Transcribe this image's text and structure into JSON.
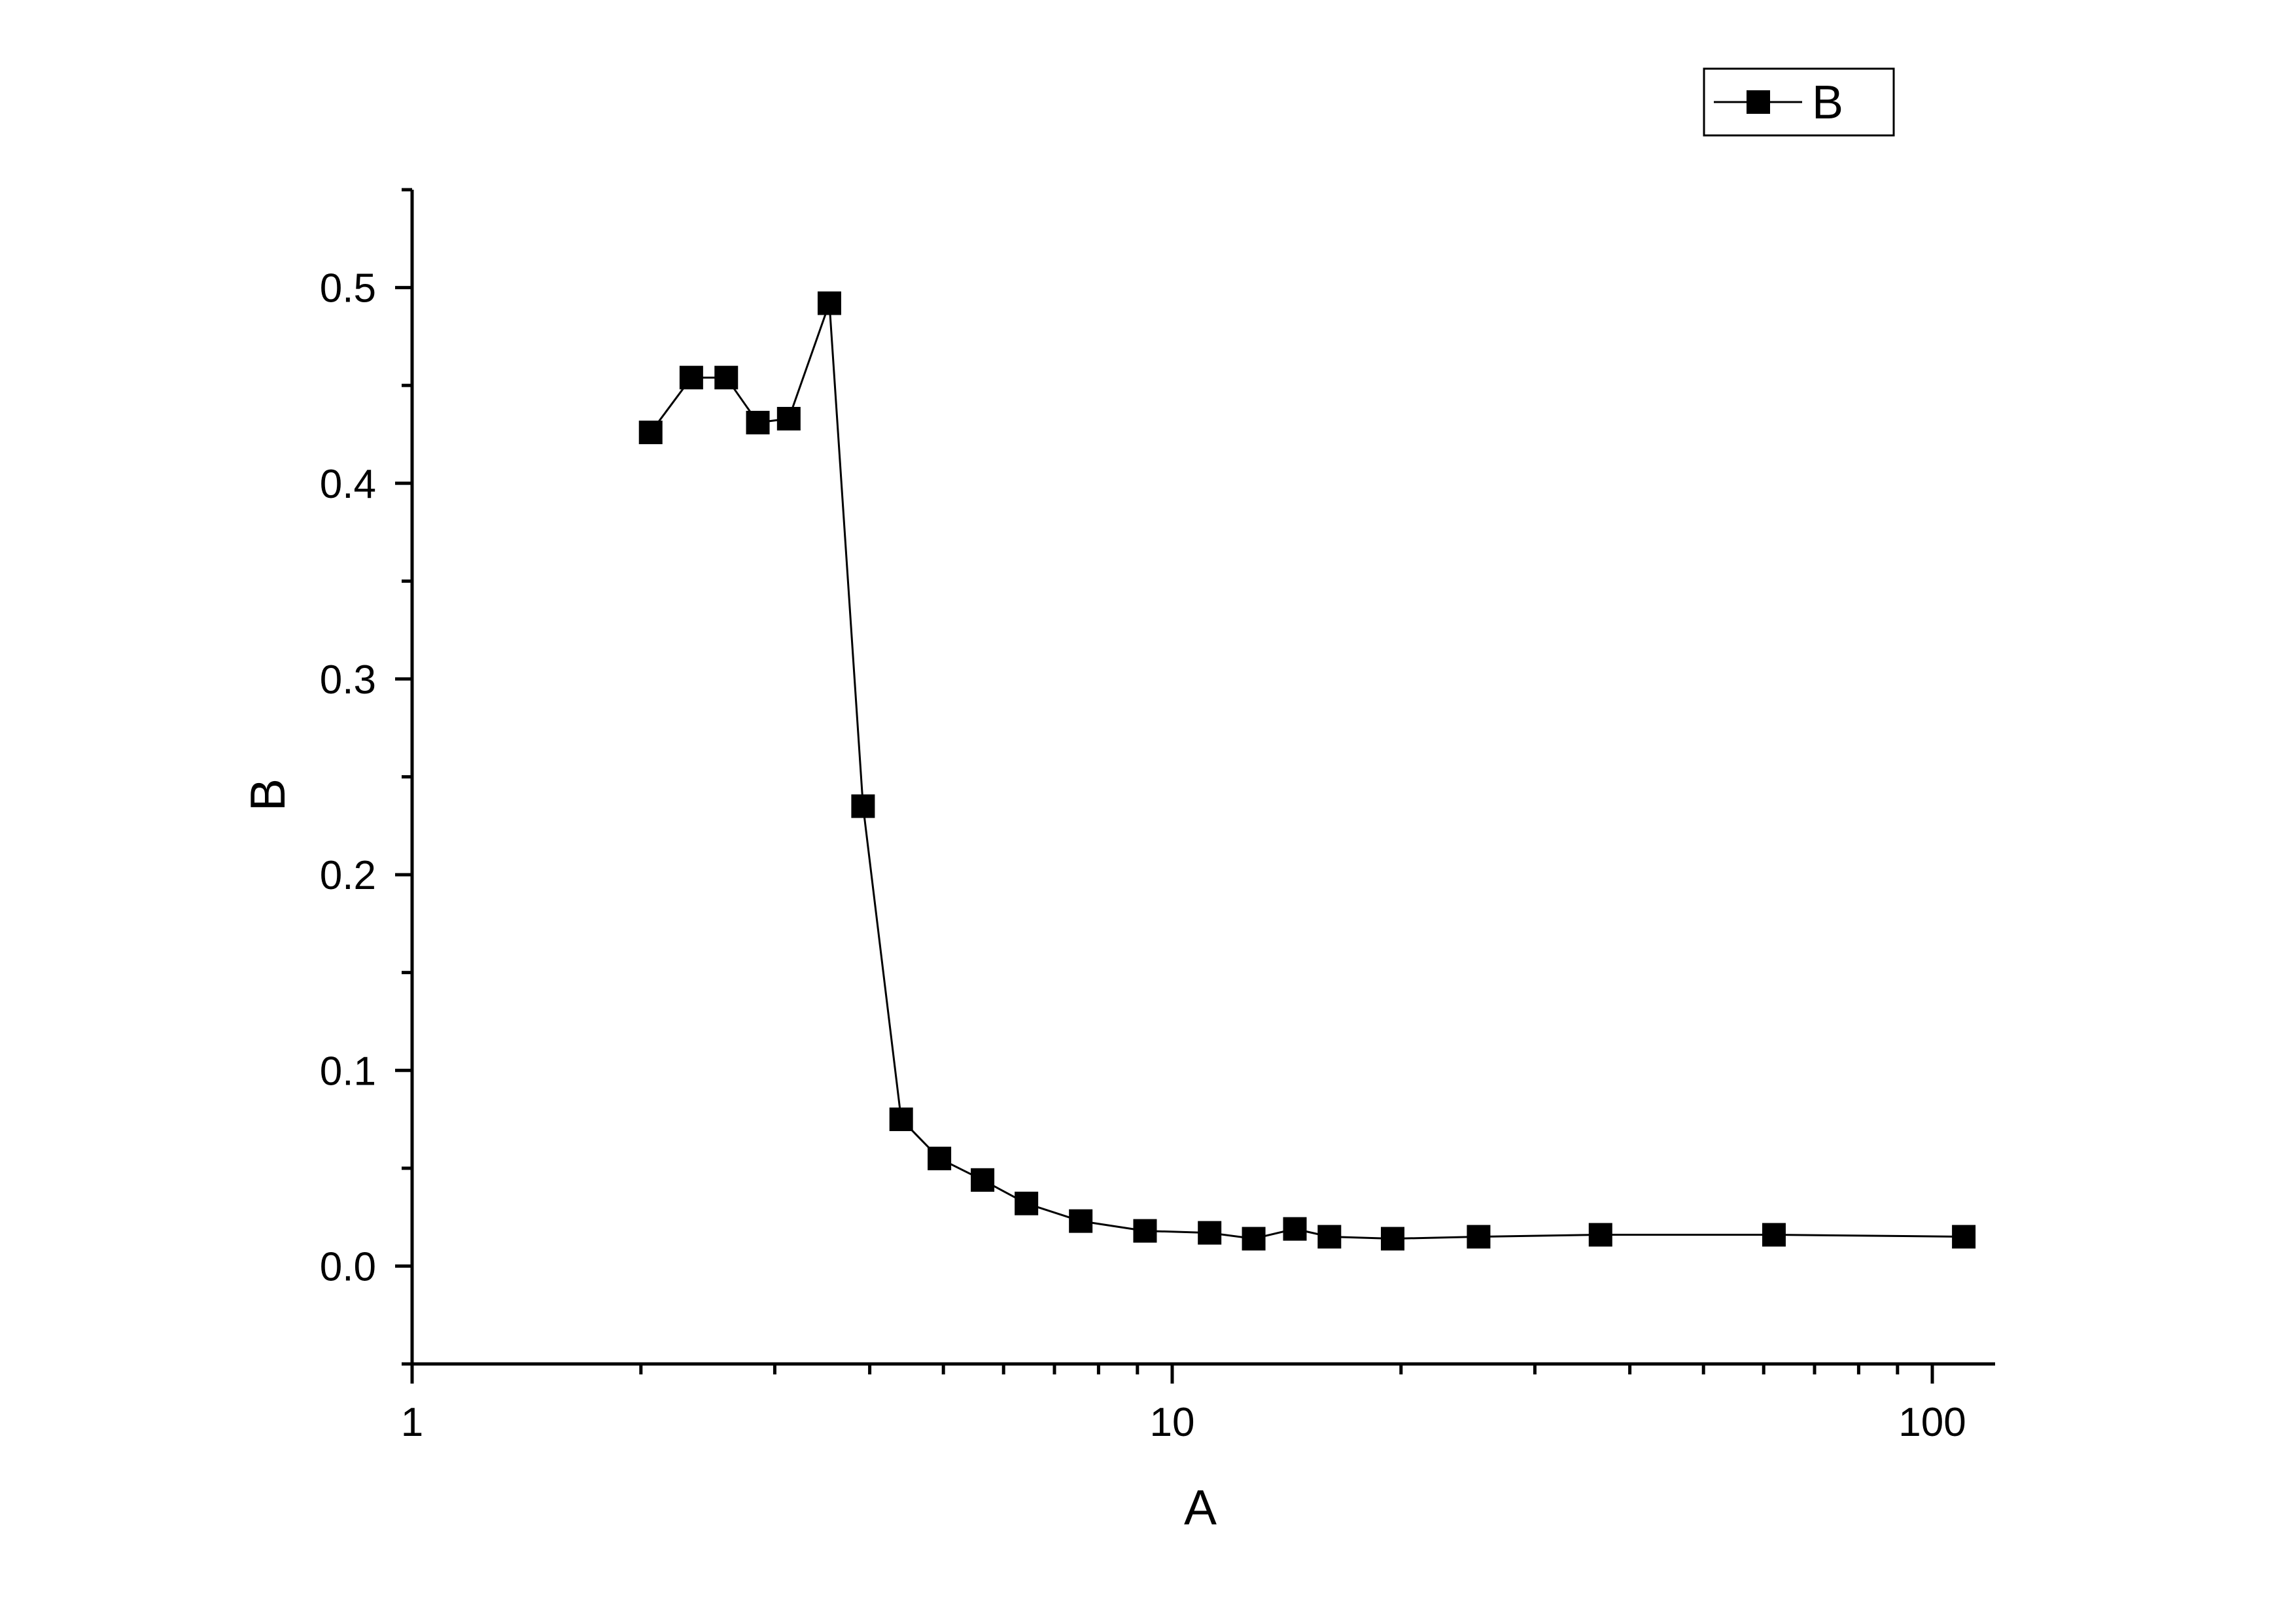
{
  "chart_data": {
    "type": "scatter",
    "title": "",
    "xlabel": "A",
    "ylabel": "B",
    "xscale": "log",
    "xlim": [
      1,
      120
    ],
    "ylim": [
      -0.05,
      0.55
    ],
    "xticks": [
      {
        "value": 1,
        "label": "1"
      },
      {
        "value": 10,
        "label": "10"
      },
      {
        "value": 100,
        "label": "100"
      }
    ],
    "yticks": [
      {
        "value": 0.0,
        "label": "0.0"
      },
      {
        "value": 0.1,
        "label": "0.1"
      },
      {
        "value": 0.2,
        "label": "0.2"
      },
      {
        "value": 0.3,
        "label": "0.3"
      },
      {
        "value": 0.4,
        "label": "0.4"
      },
      {
        "value": 0.5,
        "label": "0.5"
      }
    ],
    "grid": false,
    "legend": {
      "position": "top-right",
      "entries": [
        "B"
      ]
    },
    "series": [
      {
        "name": "B",
        "color": "#000000",
        "marker": "square",
        "line": true,
        "x": [
          2.06,
          2.33,
          2.59,
          2.85,
          3.13,
          3.54,
          3.92,
          4.4,
          4.94,
          5.63,
          6.43,
          7.58,
          9.21,
          11.2,
          12.8,
          14.5,
          16.1,
          19.5,
          25.3,
          36.6,
          61.9,
          110
        ],
        "y": [
          0.426,
          0.454,
          0.454,
          0.431,
          0.433,
          0.492,
          0.235,
          0.075,
          0.055,
          0.044,
          0.032,
          0.023,
          0.018,
          0.017,
          0.014,
          0.019,
          0.015,
          0.014,
          0.015,
          0.016,
          0.016,
          0.015
        ]
      }
    ]
  }
}
